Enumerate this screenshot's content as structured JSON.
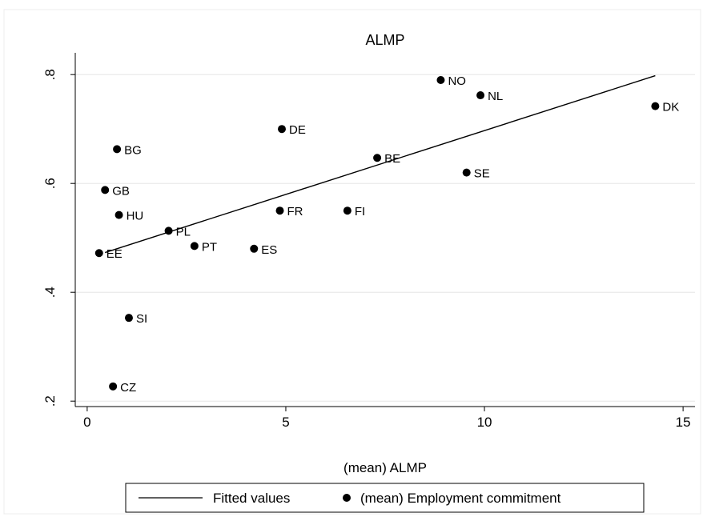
{
  "chart_data": {
    "type": "scatter",
    "title": "ALMP",
    "xlabel": "(mean) ALMP",
    "ylabel": "",
    "xlim": [
      -0.3,
      15.3
    ],
    "ylim": [
      0.19,
      0.84
    ],
    "x_ticks": [
      0,
      5,
      10,
      15
    ],
    "x_tick_labels": [
      "0",
      "5",
      "10",
      "15"
    ],
    "y_ticks": [
      0.2,
      0.4,
      0.6,
      0.8
    ],
    "y_tick_labels": [
      ".2",
      ".4",
      ".6",
      ".8"
    ],
    "grid": true,
    "legend_position": "bottom",
    "series": [
      {
        "name": "(mean) Employment commitment",
        "marker": "circle",
        "color": "#000000",
        "points": [
          {
            "label": "NO",
            "x": 8.9,
            "y": 0.79
          },
          {
            "label": "NL",
            "x": 9.9,
            "y": 0.762
          },
          {
            "label": "DK",
            "x": 14.3,
            "y": 0.742
          },
          {
            "label": "DE",
            "x": 4.9,
            "y": 0.7
          },
          {
            "label": "BG",
            "x": 0.75,
            "y": 0.663
          },
          {
            "label": "BE",
            "x": 7.3,
            "y": 0.647
          },
          {
            "label": "SE",
            "x": 9.55,
            "y": 0.62
          },
          {
            "label": "GB",
            "x": 0.45,
            "y": 0.588
          },
          {
            "label": "FR",
            "x": 4.85,
            "y": 0.55
          },
          {
            "label": "FI",
            "x": 6.55,
            "y": 0.55
          },
          {
            "label": "HU",
            "x": 0.8,
            "y": 0.542
          },
          {
            "label": "PL",
            "x": 2.05,
            "y": 0.513
          },
          {
            "label": "PT",
            "x": 2.7,
            "y": 0.485
          },
          {
            "label": "ES",
            "x": 4.2,
            "y": 0.48
          },
          {
            "label": "EE",
            "x": 0.3,
            "y": 0.472
          },
          {
            "label": "SI",
            "x": 1.05,
            "y": 0.353
          },
          {
            "label": "CZ",
            "x": 0.65,
            "y": 0.227
          }
        ]
      },
      {
        "name": "Fitted values",
        "type": "line",
        "color": "#000000",
        "x": [
          0.45,
          14.3
        ],
        "y": [
          0.473,
          0.798
        ]
      }
    ],
    "legend": [
      "Fitted values",
      "(mean) Employment commitment"
    ]
  }
}
